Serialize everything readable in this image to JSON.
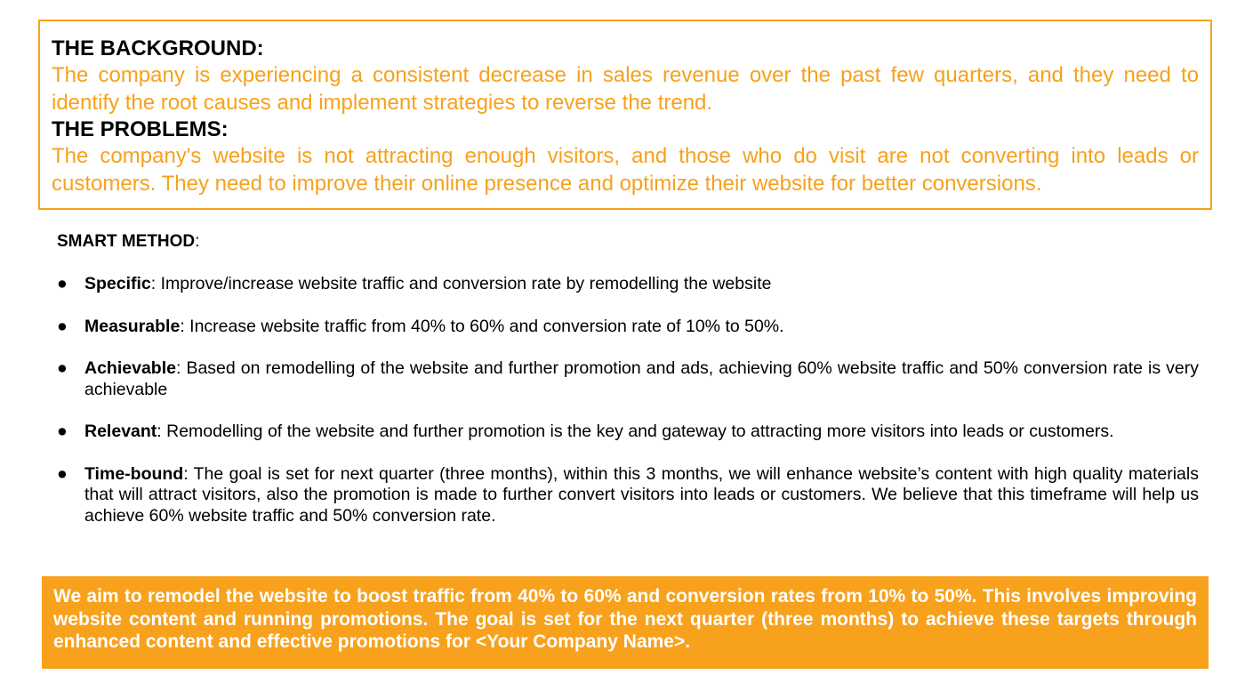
{
  "background": {
    "heading": "THE BACKGROUND:",
    "text": "The company is experiencing a consistent decrease in sales revenue over the past few quarters, and they need to identify the root causes and implement strategies to reverse the trend."
  },
  "problems": {
    "heading": "THE PROBLEMS:",
    "text": "The company's website is not attracting enough visitors, and those who do visit are not converting into leads or customers. They need to improve their online presence and optimize their website for better conversions."
  },
  "smart": {
    "title": "SMART METHOD",
    "title_suffix": ":",
    "items": [
      {
        "label": "Specific",
        "text": ":  Improve/increase website traffic and conversion rate by remodelling the website"
      },
      {
        "label": "Measurable",
        "text": ":  Increase website traffic from 40% to 60% and conversion rate of 10% to 50%."
      },
      {
        "label": "Achievable",
        "text": ": Based on remodelling of the website and further promotion and ads, achieving 60% website traffic and 50% conversion rate is very achievable"
      },
      {
        "label": "Relevant",
        "text": ": Remodelling of the website and further promotion is the key and gateway to attracting more visitors into leads or customers."
      },
      {
        "label": "Time-bound",
        "text": ": The goal is set for next quarter (three months), within this 3 months, we will enhance website’s content with high quality materials that will attract visitors,  also the promotion is made to further convert visitors into leads or customers. We believe that this timeframe will help us achieve 60% website traffic and 50% conversion rate."
      }
    ]
  },
  "aim": {
    "text": "We aim to remodel the website to boost traffic from 40% to 60% and conversion rates from 10% to 50%. This involves improving website content and running promotions. The goal is set for the next quarter (three months) to achieve these targets through enhanced content and effective promotions for <Your Company Name>."
  },
  "colors": {
    "accent": "#f7a11c",
    "text": "#000000",
    "aim_text": "#ffffff"
  },
  "icons": {
    "bullet": "bullet-dot-icon"
  }
}
